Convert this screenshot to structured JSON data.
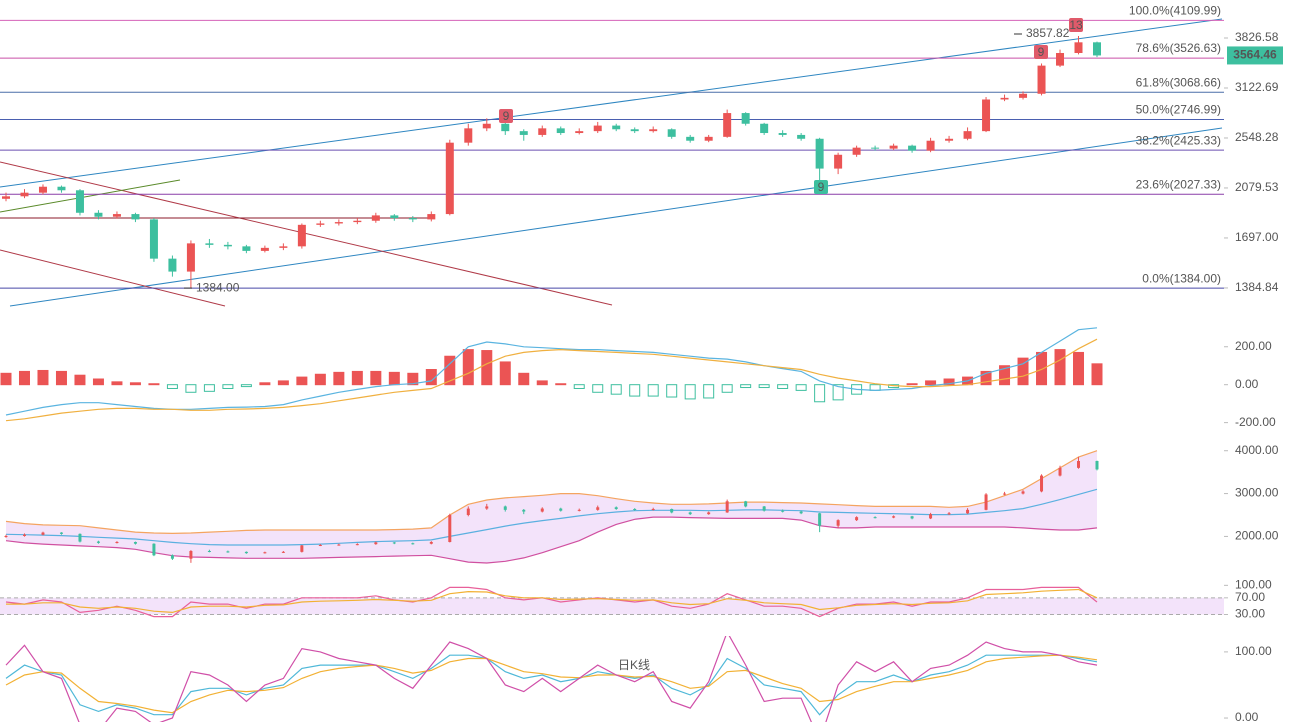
{
  "chart_data": [
    {
      "type": "candlestick",
      "log_scale": true,
      "ylim": [
        1266,
        4466
      ],
      "yticks": [
        1384.84,
        {
          "value": 1697,
          "label": "1697.00"
        },
        2079.53,
        2548.28,
        3122.69,
        3826.58
      ],
      "up_color": "#eb5454",
      "down_color": "#3dbf9f",
      "open": [
        1990,
        2010,
        2040,
        2090,
        2060,
        1880,
        1850,
        1870,
        1830,
        1560,
        1480,
        1660,
        1650,
        1640,
        1610,
        1630,
        1640,
        1790,
        1800,
        1810,
        1820,
        1860,
        1840,
        1830,
        1870,
        2500,
        2650,
        2700,
        2620,
        2580,
        2650,
        2600,
        2620,
        2680,
        2640,
        2620,
        2640,
        2560,
        2520,
        2560,
        2820,
        2700,
        2600,
        2580,
        2540,
        2250,
        2380,
        2450,
        2440,
        2470,
        2420,
        2520,
        2540,
        2620,
        2980,
        3000,
        3050,
        3420,
        3600,
        3760
      ],
      "high": [
        2040,
        2070,
        2110,
        2100,
        2070,
        1900,
        1890,
        1880,
        1840,
        1580,
        1680,
        1690,
        1670,
        1650,
        1645,
        1660,
        1800,
        1820,
        1830,
        1840,
        1880,
        1870,
        1855,
        1890,
        2530,
        2700,
        2760,
        2720,
        2640,
        2680,
        2670,
        2650,
        2720,
        2700,
        2660,
        2670,
        2650,
        2580,
        2580,
        2860,
        2830,
        2710,
        2630,
        2600,
        2550,
        2400,
        2470,
        2470,
        2490,
        2480,
        2550,
        2570,
        2660,
        3010,
        3040,
        3080,
        3450,
        3650,
        3857.82,
        3770
      ],
      "low": [
        1970,
        1995,
        2025,
        2040,
        1860,
        1830,
        1835,
        1810,
        1540,
        1450,
        1384,
        1630,
        1620,
        1595,
        1600,
        1615,
        1625,
        1775,
        1785,
        1795,
        1805,
        1820,
        1810,
        1815,
        1860,
        2470,
        2620,
        2580,
        2520,
        2560,
        2580,
        2585,
        2600,
        2620,
        2600,
        2605,
        2540,
        2500,
        2505,
        2550,
        2680,
        2580,
        2560,
        2520,
        2100,
        2200,
        2360,
        2420,
        2425,
        2400,
        2405,
        2500,
        2525,
        2610,
        2960,
        2980,
        3030,
        3400,
        3580,
        3540
      ],
      "close": [
        2010,
        2040,
        2090,
        2060,
        1880,
        1850,
        1870,
        1830,
        1560,
        1480,
        1660,
        1650,
        1640,
        1610,
        1630,
        1640,
        1790,
        1800,
        1810,
        1820,
        1860,
        1840,
        1830,
        1870,
        2500,
        2650,
        2700,
        2620,
        2580,
        2650,
        2600,
        2620,
        2680,
        2640,
        2620,
        2640,
        2560,
        2520,
        2560,
        2820,
        2700,
        2600,
        2580,
        2540,
        2250,
        2380,
        2450,
        2440,
        2470,
        2420,
        2520,
        2540,
        2620,
        2980,
        3000,
        3050,
        3420,
        3600,
        3760,
        3564.46
      ],
      "fib_levels": [
        {
          "value": 4109.99,
          "label": "100.0%(4109.99)",
          "color": "#d462b8"
        },
        {
          "value": 3526.63,
          "label": "78.6%(3526.63)",
          "color": "#c94fa8"
        },
        {
          "value": 3068.66,
          "label": "61.8%(3068.66)",
          "color": "#4a6fa8"
        },
        {
          "value": 2746.99,
          "label": "50.0%(2746.99)",
          "color": "#4a5fb0"
        },
        {
          "value": 2425.33,
          "label": "38.2%(2425.33)",
          "color": "#6a4fb0"
        },
        {
          "value": 2027.33,
          "label": "23.6%(2027.33)",
          "color": "#8a3fa8"
        },
        {
          "value": 1384,
          "label": "0.0%(1384.00)",
          "color": "#4848a8"
        }
      ],
      "price_labels": [
        {
          "value": 3857.82,
          "label": "3857.82"
        },
        {
          "value": 1384,
          "label": "1384.00"
        }
      ],
      "markers": [
        "13",
        "9",
        "9",
        "9"
      ]
    },
    {
      "type": "macd",
      "ylim": [
        -260,
        320
      ],
      "yticks": [
        {
          "value": 200,
          "label": "200.00"
        },
        {
          "value": 0,
          "label": "0.00"
        },
        {
          "value": -200,
          "label": "-200.00"
        }
      ],
      "histogram": [
        60,
        70,
        75,
        70,
        50,
        30,
        15,
        10,
        5,
        -20,
        -40,
        -35,
        -20,
        -10,
        10,
        20,
        40,
        55,
        65,
        70,
        70,
        65,
        60,
        80,
        150,
        185,
        180,
        120,
        60,
        20,
        5,
        -20,
        -40,
        -50,
        -60,
        -60,
        -65,
        -75,
        -70,
        -40,
        -15,
        -15,
        -20,
        -30,
        -90,
        -80,
        -50,
        -30,
        -15,
        5,
        20,
        30,
        40,
        70,
        100,
        140,
        170,
        185,
        170,
        110
      ],
      "lines": [
        {
          "color": "#5ab4e0",
          "values": [
            -160,
            -140,
            -120,
            -105,
            -95,
            -95,
            -105,
            -115,
            -125,
            -130,
            -130,
            -125,
            -120,
            -118,
            -115,
            -105,
            -80,
            -60,
            -40,
            -25,
            -10,
            0,
            5,
            20,
            110,
            200,
            225,
            215,
            200,
            195,
            190,
            185,
            185,
            180,
            175,
            170,
            160,
            150,
            140,
            135,
            120,
            100,
            85,
            70,
            20,
            -10,
            -25,
            -30,
            -25,
            -20,
            -5,
            5,
            20,
            60,
            85,
            110,
            170,
            230,
            290,
            300
          ]
        },
        {
          "color": "#f0b040",
          "values": [
            -190,
            -180,
            -165,
            -150,
            -140,
            -130,
            -125,
            -125,
            -130,
            -130,
            -135,
            -135,
            -130,
            -128,
            -125,
            -120,
            -110,
            -100,
            -85,
            -70,
            -55,
            -40,
            -30,
            -20,
            20,
            60,
            110,
            150,
            170,
            180,
            185,
            180,
            175,
            170,
            165,
            160,
            150,
            140,
            130,
            120,
            110,
            100,
            90,
            80,
            55,
            35,
            20,
            5,
            -5,
            -10,
            -10,
            -5,
            0,
            15,
            30,
            45,
            80,
            130,
            190,
            240
          ]
        }
      ]
    },
    {
      "type": "bollinger",
      "ylim": [
        1100,
        4250
      ],
      "yticks": [
        {
          "value": 4000,
          "label": "4000.00"
        },
        {
          "value": 3000,
          "label": "3000.00"
        },
        {
          "value": 2000,
          "label": "2000.00"
        }
      ],
      "fill": "#f3e3fa",
      "bands": [
        {
          "color": "#f4a460",
          "values": [
            2350,
            2300,
            2270,
            2260,
            2250,
            2200,
            2150,
            2100,
            2080,
            2070,
            2080,
            2100,
            2120,
            2140,
            2150,
            2150,
            2150,
            2150,
            2150,
            2150,
            2150,
            2160,
            2170,
            2200,
            2500,
            2750,
            2850,
            2900,
            2930,
            2960,
            3000,
            3000,
            2950,
            2880,
            2820,
            2780,
            2750,
            2750,
            2760,
            2780,
            2800,
            2800,
            2790,
            2780,
            2760,
            2740,
            2720,
            2700,
            2700,
            2700,
            2700,
            2680,
            2700,
            2800,
            2950,
            3100,
            3350,
            3600,
            3850,
            4000
          ]
        },
        {
          "color": "#5ab0e0",
          "values": [
            2050,
            2040,
            2030,
            2020,
            2000,
            1980,
            1960,
            1940,
            1900,
            1860,
            1830,
            1810,
            1800,
            1800,
            1800,
            1800,
            1810,
            1820,
            1840,
            1860,
            1880,
            1890,
            1900,
            1920,
            2000,
            2080,
            2160,
            2240,
            2310,
            2370,
            2420,
            2480,
            2530,
            2570,
            2600,
            2610,
            2610,
            2610,
            2600,
            2610,
            2620,
            2620,
            2610,
            2600,
            2570,
            2560,
            2550,
            2540,
            2530,
            2520,
            2510,
            2510,
            2520,
            2560,
            2600,
            2650,
            2750,
            2860,
            2980,
            3100
          ]
        },
        {
          "color": "#d050a0",
          "values": [
            1900,
            1850,
            1820,
            1800,
            1780,
            1760,
            1740,
            1700,
            1620,
            1550,
            1520,
            1510,
            1500,
            1490,
            1490,
            1490,
            1490,
            1500,
            1510,
            1520,
            1530,
            1540,
            1550,
            1560,
            1480,
            1400,
            1380,
            1420,
            1500,
            1620,
            1760,
            1900,
            2100,
            2280,
            2400,
            2450,
            2450,
            2440,
            2430,
            2420,
            2420,
            2420,
            2420,
            2380,
            2250,
            2200,
            2200,
            2220,
            2220,
            2220,
            2220,
            2220,
            2220,
            2220,
            2220,
            2200,
            2170,
            2150,
            2150,
            2200
          ]
        }
      ]
    },
    {
      "type": "oscillator",
      "ylim": [
        0,
        120
      ],
      "band": "#f3e3fa",
      "yticks": [
        {
          "value": 100,
          "label": "100.00"
        },
        {
          "value": 70,
          "label": "70.00"
        },
        {
          "value": 30,
          "label": "30.00"
        }
      ],
      "lines": [
        {
          "color": "#e8609a",
          "values": [
            60,
            55,
            65,
            60,
            35,
            40,
            50,
            40,
            25,
            25,
            60,
            55,
            55,
            45,
            55,
            55,
            70,
            70,
            70,
            70,
            75,
            65,
            60,
            70,
            95,
            95,
            90,
            70,
            65,
            70,
            60,
            65,
            70,
            65,
            60,
            65,
            50,
            45,
            55,
            80,
            65,
            50,
            50,
            45,
            25,
            45,
            55,
            55,
            60,
            50,
            60,
            60,
            70,
            90,
            90,
            90,
            95,
            95,
            95,
            60
          ]
        },
        {
          "color": "#f2b134",
          "values": [
            55,
            55,
            58,
            58,
            48,
            45,
            48,
            45,
            38,
            35,
            48,
            50,
            50,
            48,
            52,
            53,
            60,
            62,
            63,
            64,
            66,
            64,
            62,
            64,
            80,
            85,
            84,
            75,
            70,
            70,
            66,
            67,
            68,
            66,
            64,
            65,
            58,
            54,
            56,
            68,
            64,
            58,
            56,
            54,
            42,
            46,
            52,
            54,
            56,
            54,
            57,
            58,
            63,
            78,
            80,
            82,
            86,
            88,
            90,
            70
          ]
        }
      ]
    },
    {
      "type": "oscillator",
      "ylim": [
        -6,
        118
      ],
      "annotation": "日K线",
      "yticks": [
        {
          "value": 100,
          "label": "100.00"
        },
        {
          "value": 0,
          "label": "0.00"
        }
      ],
      "lines": [
        {
          "color": "#4fb8d8",
          "values": [
            60,
            80,
            70,
            65,
            20,
            10,
            20,
            15,
            5,
            5,
            40,
            45,
            45,
            35,
            45,
            50,
            75,
            80,
            80,
            80,
            80,
            70,
            60,
            75,
            95,
            95,
            90,
            70,
            60,
            65,
            55,
            60,
            70,
            65,
            60,
            65,
            45,
            35,
            50,
            90,
            75,
            50,
            45,
            40,
            5,
            35,
            55,
            55,
            65,
            55,
            65,
            70,
            80,
            95,
            95,
            95,
            95,
            95,
            90,
            85
          ]
        },
        {
          "color": "#f2b134",
          "values": [
            50,
            65,
            70,
            68,
            45,
            25,
            22,
            18,
            12,
            8,
            25,
            35,
            42,
            40,
            42,
            46,
            60,
            70,
            75,
            78,
            80,
            75,
            68,
            72,
            85,
            90,
            90,
            80,
            70,
            67,
            62,
            61,
            65,
            65,
            62,
            63,
            55,
            45,
            48,
            70,
            72,
            62,
            52,
            45,
            25,
            28,
            40,
            48,
            55,
            55,
            60,
            65,
            72,
            85,
            90,
            92,
            94,
            95,
            92,
            88
          ]
        },
        {
          "color": "#d04fa8",
          "values": [
            80,
            110,
            70,
            60,
            -10,
            -20,
            15,
            10,
            -10,
            0,
            70,
            65,
            50,
            25,
            50,
            60,
            105,
            100,
            90,
            85,
            80,
            60,
            45,
            80,
            115,
            105,
            90,
            50,
            40,
            60,
            40,
            60,
            80,
            65,
            55,
            70,
            25,
            15,
            55,
            130,
            80,
            25,
            30,
            30,
            -35,
            50,
            85,
            70,
            85,
            55,
            75,
            80,
            95,
            115,
            105,
            100,
            100,
            95,
            85,
            80
          ]
        }
      ]
    }
  ]
}
